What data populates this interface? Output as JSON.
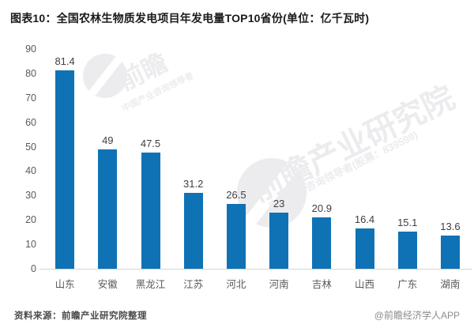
{
  "title": "图表10：全国农林生物质发电项目年发电量TOP10省份(单位：亿千瓦时)",
  "footer": {
    "source": "资料来源：前瞻产业研究院整理",
    "credit": "@前瞻经济学人APP"
  },
  "watermark": {
    "brand": "前瞻",
    "brand_full": "前瞻产业研究院",
    "tagline_short": "中国产业咨询领导者",
    "tagline": "中国产业咨询领导者(股票：839599)"
  },
  "colors": {
    "bar": "#0f72b5",
    "title": "#1a1a1a",
    "axis_label": "#595959",
    "value_label": "#404040",
    "axis_line": "#d6d6d6",
    "footer_source": "#4a4a4a",
    "footer_credit": "#8c8c8c",
    "watermark": "#ececef"
  },
  "chart_data": {
    "type": "bar",
    "title": "图表10：全国农林生物质发电项目年发电量TOP10省份(单位：亿千瓦时)",
    "categories": [
      "山东",
      "安徽",
      "黑龙江",
      "江苏",
      "河北",
      "河南",
      "吉林",
      "山西",
      "广东",
      "湖南"
    ],
    "values": [
      81.4,
      49,
      47.5,
      31.2,
      26.5,
      23,
      20.9,
      16.4,
      15.1,
      13.6
    ],
    "value_labels": [
      "81.4",
      "49",
      "47.5",
      "31.2",
      "26.5",
      "23",
      "20.9",
      "16.4",
      "15.1",
      "13.6"
    ],
    "xlabel": "",
    "ylabel": "",
    "ylim": [
      0,
      90
    ],
    "ytick_step": 10,
    "grid": false,
    "legend": false,
    "unit": "亿千瓦时"
  }
}
